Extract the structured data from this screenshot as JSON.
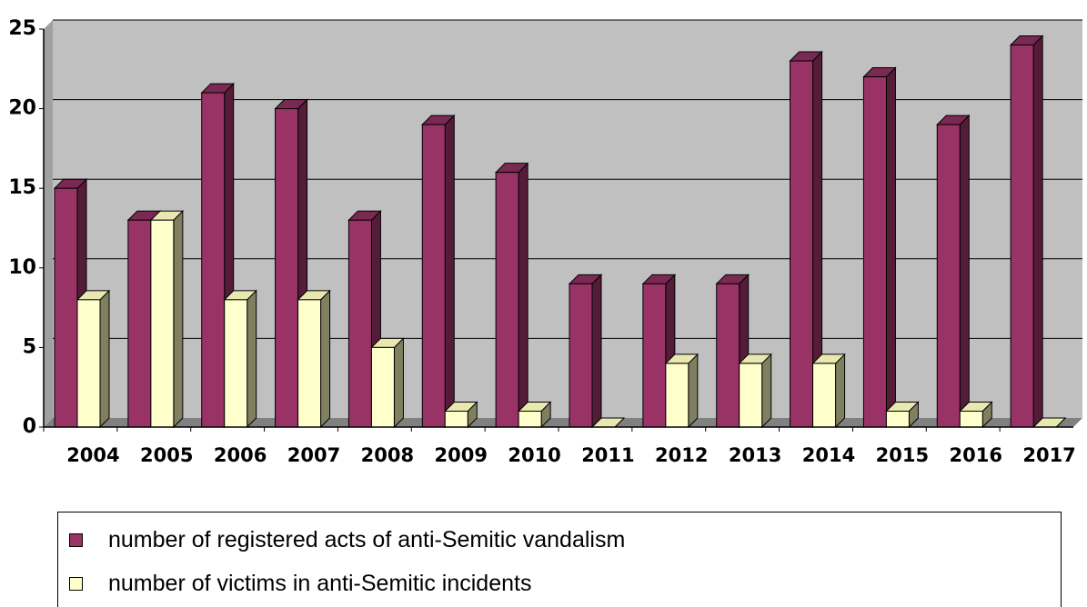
{
  "chart_data": {
    "type": "bar",
    "title": "",
    "xlabel": "",
    "ylabel": "",
    "ylim": [
      0,
      25
    ],
    "yticks": [
      0,
      5,
      10,
      15,
      20,
      25
    ],
    "grid": true,
    "legend_position": "bottom",
    "categories": [
      "2004",
      "2005",
      "2006",
      "2007",
      "2008",
      "2009",
      "2010",
      "2011",
      "2012",
      "2013",
      "2014",
      "2015",
      "2016",
      "2017"
    ],
    "series": [
      {
        "name": "number of registered acts of anti-Semitic vandalism",
        "color": "#993366",
        "values": [
          15,
          13,
          21,
          20,
          13,
          19,
          16,
          9,
          9,
          9,
          23,
          22,
          19,
          24
        ]
      },
      {
        "name": "number of victims in anti-Semitic incidents",
        "color": "#FFFFCC",
        "values": [
          8,
          13,
          8,
          8,
          5,
          1,
          1,
          0,
          4,
          4,
          4,
          1,
          1,
          0
        ]
      }
    ],
    "colors": {
      "plot_background": "#C0C0C0",
      "floor": "#808080",
      "gridline": "#000000"
    }
  }
}
